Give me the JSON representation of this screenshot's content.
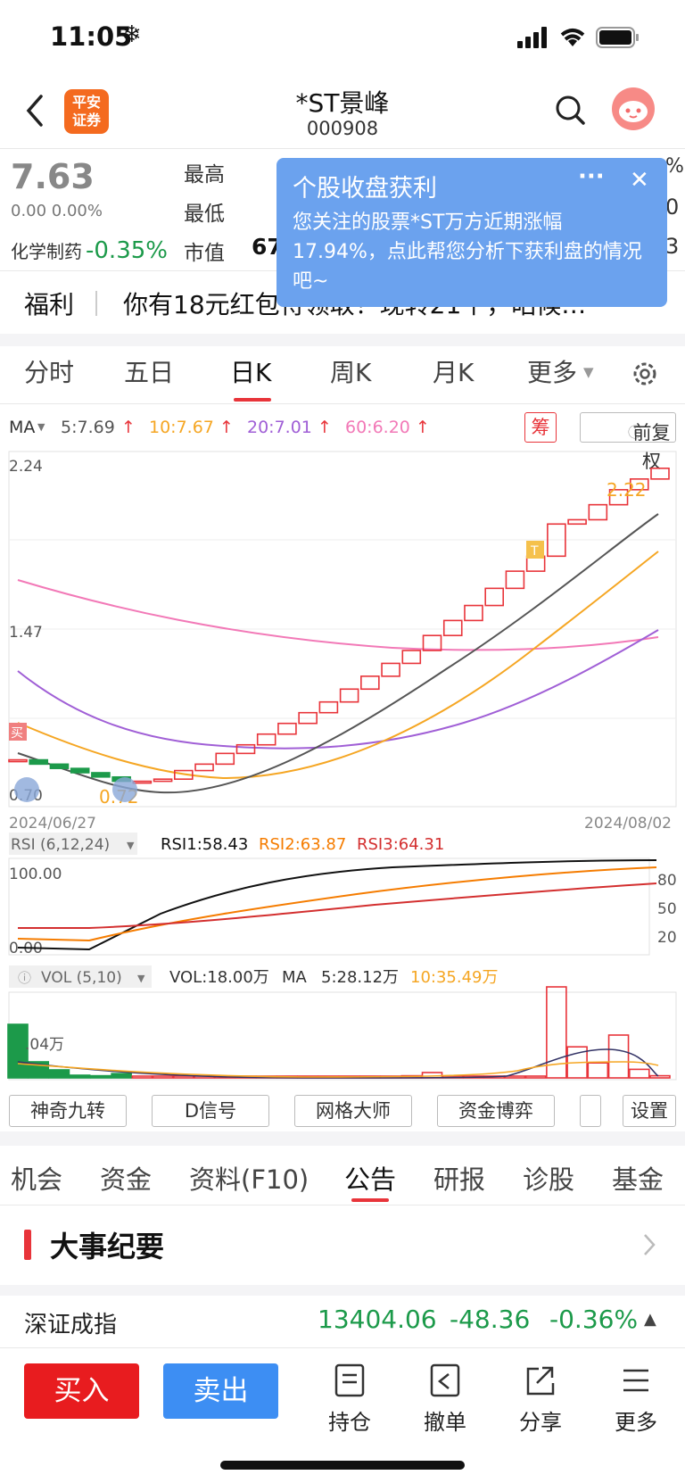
{
  "status": {
    "time": "11:05",
    "icon": "snowflake-icon"
  },
  "header": {
    "back_icon": "chevron-left-icon",
    "logo_line1": "平安",
    "logo_line2": "证券",
    "name": "*ST景峰",
    "code": "000908",
    "search_icon": "search-icon",
    "avatar_icon": "assistant-avatar-icon"
  },
  "quote": {
    "price": "7.63",
    "change": "0.00 0.00%",
    "industry_label": "化学制药",
    "industry_change": "-0.35%",
    "high_label": "最高",
    "low_label": "最低",
    "cap_label": "市值",
    "cap_value_partial": "67",
    "right_partial_1": "%",
    "right_partial_2": "0",
    "right_partial_3": "3"
  },
  "popup": {
    "title": "个股收盘获利",
    "more": "···",
    "close": "✕",
    "body": "您关注的股票*ST万方近期涨幅17.94%，点此帮您分析下获利盘的情况吧~"
  },
  "welfare": {
    "label": "福利",
    "text": "你有18元红包待领取！现转21个，昭候…"
  },
  "tabs": {
    "items": [
      "分时",
      "五日",
      "日K",
      "周K",
      "月K",
      "更多"
    ],
    "active": 2,
    "settings_icon": "gear-icon"
  },
  "ma": {
    "label": "MA",
    "ma5": "5:7.69",
    "ma10": "10:7.67",
    "ma20": "20:7.01",
    "ma60": "60:6.20",
    "chip_btn": "筹",
    "adj_btn": "前复权"
  },
  "colors": {
    "up": "#e8343a",
    "down": "#1c9a4a",
    "ma5": "#555555",
    "ma10": "#f5a623",
    "ma20": "#a05fd6",
    "ma60": "#f279b7"
  },
  "kline": {
    "ymax_label": "2.24",
    "ymid_label": "1.47",
    "ymin_label": "0.70",
    "low_annot": "0.72",
    "high_annot": "2.22",
    "buy_tag": "买",
    "t_tag": "T",
    "date_start": "2024/06/27",
    "date_end": "2024/08/02"
  },
  "chart_data": {
    "type": "candlestick",
    "x_start": "2024/06/27",
    "x_end": "2024/08/02",
    "ylim": [
      0.7,
      2.24
    ],
    "closes": [
      0.86,
      0.84,
      0.82,
      0.8,
      0.78,
      0.76,
      0.76,
      0.77,
      0.81,
      0.84,
      0.89,
      0.93,
      0.98,
      1.03,
      1.08,
      1.13,
      1.19,
      1.25,
      1.31,
      1.37,
      1.44,
      1.51,
      1.58,
      1.66,
      1.74,
      1.81,
      1.96,
      1.98,
      2.05,
      2.12,
      2.17,
      2.22
    ],
    "rsi": {
      "label": "RSI (6,12,24)",
      "rsi1": "RSI1:58.43",
      "rsi2": "RSI2:63.87",
      "rsi3": "RSI3:64.31",
      "ytop": "100.00",
      "ybottom": "0.00",
      "levels": [
        "80",
        "50",
        "20"
      ]
    },
    "vol": {
      "label": "VOL (5,10)",
      "vol": "VOL:18.00万",
      "ma": "MA",
      "ma5": "5:28.12万",
      "ma10": "10:35.49万",
      "yval": ".04万"
    }
  },
  "indicators": [
    "神奇九转",
    "D信号",
    "网格大师",
    "资金博弈",
    "设置"
  ],
  "bottom_tabs": {
    "items": [
      "机会",
      "资金",
      "资料(F10)",
      "公告",
      "研报",
      "诊股",
      "基金"
    ],
    "active": 3
  },
  "events": {
    "title": "大事纪要"
  },
  "index_row": {
    "name": "深证成指",
    "value": "13404.06",
    "change": "-48.36",
    "pct": "-0.36%"
  },
  "actions": {
    "buy": "买入",
    "sell": "卖出",
    "hold": "持仓",
    "cancel": "撤单",
    "share": "分享",
    "more": "更多"
  }
}
